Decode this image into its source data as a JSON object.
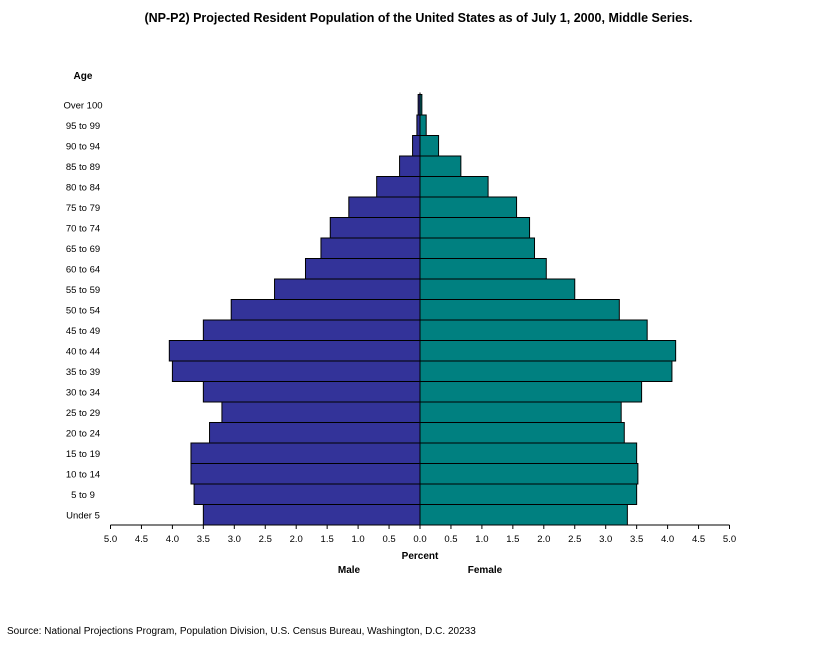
{
  "title": "(NP-P2)  Projected Resident Population of the United States as of July 1, 2000, Middle Series.",
  "source": "Source:  National Projections Program, Population Division, U.S. Census Bureau, Washington, D.C. 20233",
  "chart_data": {
    "type": "bar",
    "orientation": "horizontal-pyramid",
    "title": "(NP-P2)  Projected Resident Population of the United States as of July 1, 2000, Middle Series.",
    "ylabel": "Age",
    "xlabel": "Percent",
    "categories": [
      "Under 5",
      "5 to 9",
      "10 to 14",
      "15 to 19",
      "20 to 24",
      "25 to 29",
      "30 to 34",
      "35 to 39",
      "40 to 44",
      "45 to 49",
      "50 to 54",
      "55 to 59",
      "60 to 64",
      "65 to 69",
      "70 to 74",
      "75 to 79",
      "80 to 84",
      "85 to 89",
      "90 to 94",
      "95 to 99",
      "Over 100"
    ],
    "x_ticks": [
      "5.0",
      "4.5",
      "4.0",
      "3.5",
      "3.0",
      "2.5",
      "2.0",
      "1.5",
      "1.0",
      "0.5",
      "0.0",
      "0.5",
      "1.0",
      "1.5",
      "2.0",
      "2.5",
      "3.0",
      "3.5",
      "4.0",
      "4.5",
      "5.0"
    ],
    "xlim": [
      -5,
      5
    ],
    "series": [
      {
        "name": "Male",
        "side": "left",
        "color": "#333399",
        "values": [
          3.5,
          3.65,
          3.7,
          3.7,
          3.4,
          3.2,
          3.5,
          4.0,
          4.05,
          3.5,
          3.05,
          2.35,
          1.85,
          1.6,
          1.45,
          1.15,
          0.7,
          0.33,
          0.12,
          0.05,
          0.03
        ]
      },
      {
        "name": "Female",
        "side": "right",
        "color": "#008080",
        "values": [
          3.35,
          3.5,
          3.52,
          3.5,
          3.3,
          3.25,
          3.58,
          4.07,
          4.13,
          3.67,
          3.22,
          2.5,
          2.04,
          1.85,
          1.77,
          1.56,
          1.1,
          0.66,
          0.3,
          0.1,
          0.03
        ]
      }
    ],
    "grid": false,
    "legend_position": "bottom"
  }
}
